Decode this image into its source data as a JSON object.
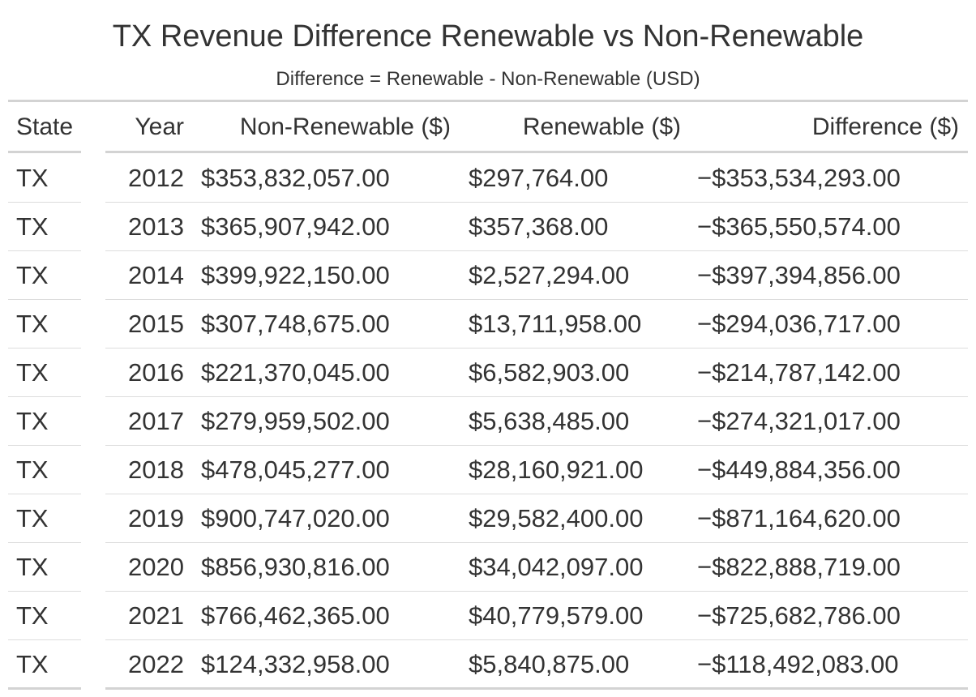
{
  "title": "TX Revenue Difference Renewable vs Non-Renewable",
  "subtitle": "Difference = Renewable - Non-Renewable (USD)",
  "columns": {
    "state": "State",
    "year": "Year",
    "non_renewable": "Non-Renewable ($)",
    "renewable": "Renewable ($)",
    "difference": "Difference ($)"
  },
  "rows": [
    {
      "state": "TX",
      "year": "2012",
      "non_renewable": "$353,832,057.00",
      "renewable": "$297,764.00",
      "difference": "−$353,534,293.00"
    },
    {
      "state": "TX",
      "year": "2013",
      "non_renewable": "$365,907,942.00",
      "renewable": "$357,368.00",
      "difference": "−$365,550,574.00"
    },
    {
      "state": "TX",
      "year": "2014",
      "non_renewable": "$399,922,150.00",
      "renewable": "$2,527,294.00",
      "difference": "−$397,394,856.00"
    },
    {
      "state": "TX",
      "year": "2015",
      "non_renewable": "$307,748,675.00",
      "renewable": "$13,711,958.00",
      "difference": "−$294,036,717.00"
    },
    {
      "state": "TX",
      "year": "2016",
      "non_renewable": "$221,370,045.00",
      "renewable": "$6,582,903.00",
      "difference": "−$214,787,142.00"
    },
    {
      "state": "TX",
      "year": "2017",
      "non_renewable": "$279,959,502.00",
      "renewable": "$5,638,485.00",
      "difference": "−$274,321,017.00"
    },
    {
      "state": "TX",
      "year": "2018",
      "non_renewable": "$478,045,277.00",
      "renewable": "$28,160,921.00",
      "difference": "−$449,884,356.00"
    },
    {
      "state": "TX",
      "year": "2019",
      "non_renewable": "$900,747,020.00",
      "renewable": "$29,582,400.00",
      "difference": "−$871,164,620.00"
    },
    {
      "state": "TX",
      "year": "2020",
      "non_renewable": "$856,930,816.00",
      "renewable": "$34,042,097.00",
      "difference": "−$822,888,719.00"
    },
    {
      "state": "TX",
      "year": "2021",
      "non_renewable": "$766,462,365.00",
      "renewable": "$40,779,579.00",
      "difference": "−$725,682,786.00"
    },
    {
      "state": "TX",
      "year": "2022",
      "non_renewable": "$124,332,958.00",
      "renewable": "$5,840,875.00",
      "difference": "−$118,492,083.00"
    }
  ],
  "chart_data": {
    "type": "table",
    "title": "TX Revenue Difference Renewable vs Non-Renewable",
    "subtitle": "Difference = Renewable - Non-Renewable (USD)",
    "columns": [
      "State",
      "Year",
      "Non-Renewable ($)",
      "Renewable ($)",
      "Difference ($)"
    ],
    "x": [
      2012,
      2013,
      2014,
      2015,
      2016,
      2017,
      2018,
      2019,
      2020,
      2021,
      2022
    ],
    "series": [
      {
        "name": "Non-Renewable ($)",
        "values": [
          353832057.0,
          365907942.0,
          399922150.0,
          307748675.0,
          221370045.0,
          279959502.0,
          478045277.0,
          900747020.0,
          856930816.0,
          766462365.0,
          124332958.0
        ]
      },
      {
        "name": "Renewable ($)",
        "values": [
          297764.0,
          357368.0,
          2527294.0,
          13711958.0,
          6582903.0,
          5638485.0,
          28160921.0,
          29582400.0,
          34042097.0,
          40779579.0,
          5840875.0
        ]
      },
      {
        "name": "Difference ($)",
        "values": [
          -353534293.0,
          -365550574.0,
          -397394856.0,
          -294036717.0,
          -214787142.0,
          -274321017.0,
          -449884356.0,
          -871164620.0,
          -822888719.0,
          -725682786.0,
          -118492083.0
        ]
      }
    ],
    "grid": false
  }
}
